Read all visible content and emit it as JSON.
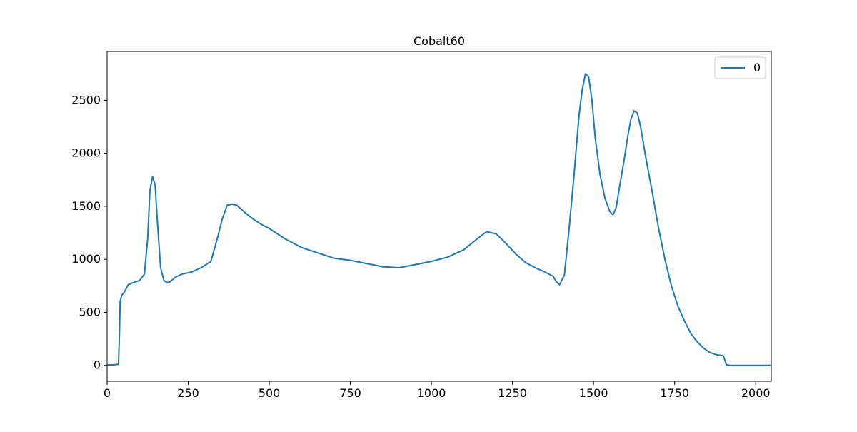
{
  "chart_data": {
    "type": "line",
    "title": "Cobalt60",
    "xlabel": "",
    "ylabel": "",
    "xlim": [
      0,
      2048
    ],
    "ylim": [
      -150,
      2960
    ],
    "grid": false,
    "legend_placement": "top-right",
    "xticks": [
      0,
      250,
      500,
      750,
      1000,
      1250,
      1500,
      1750,
      2000
    ],
    "yticks": [
      0,
      500,
      1000,
      1500,
      2000,
      2500
    ],
    "series": [
      {
        "name": "0",
        "color": "#1f77b4",
        "x": [
          0,
          20,
          35,
          38,
          40,
          45,
          55,
          65,
          80,
          100,
          115,
          125,
          132,
          140,
          148,
          155,
          165,
          175,
          185,
          195,
          210,
          230,
          260,
          290,
          320,
          340,
          355,
          370,
          385,
          400,
          425,
          450,
          475,
          500,
          550,
          600,
          650,
          700,
          750,
          800,
          850,
          900,
          950,
          1000,
          1050,
          1100,
          1140,
          1170,
          1200,
          1230,
          1260,
          1290,
          1320,
          1350,
          1375,
          1385,
          1395,
          1410,
          1425,
          1440,
          1455,
          1465,
          1475,
          1485,
          1495,
          1505,
          1520,
          1535,
          1550,
          1560,
          1570,
          1580,
          1595,
          1605,
          1615,
          1625,
          1635,
          1645,
          1660,
          1680,
          1700,
          1720,
          1740,
          1760,
          1780,
          1800,
          1820,
          1840,
          1860,
          1880,
          1900,
          1910,
          1920,
          1960,
          2000,
          2048
        ],
        "values": [
          5,
          5,
          10,
          300,
          600,
          660,
          700,
          760,
          780,
          800,
          860,
          1200,
          1650,
          1780,
          1700,
          1350,
          920,
          800,
          780,
          790,
          830,
          860,
          880,
          920,
          980,
          1200,
          1380,
          1510,
          1520,
          1510,
          1440,
          1380,
          1330,
          1290,
          1190,
          1110,
          1060,
          1010,
          990,
          960,
          930,
          920,
          950,
          980,
          1020,
          1090,
          1190,
          1260,
          1240,
          1150,
          1050,
          970,
          920,
          880,
          840,
          790,
          760,
          850,
          1300,
          1800,
          2350,
          2600,
          2750,
          2720,
          2500,
          2150,
          1800,
          1580,
          1450,
          1420,
          1490,
          1680,
          1950,
          2150,
          2320,
          2400,
          2380,
          2250,
          1980,
          1650,
          1300,
          1000,
          750,
          560,
          420,
          300,
          220,
          160,
          120,
          100,
          90,
          5,
          0,
          0,
          0,
          0
        ]
      }
    ]
  }
}
